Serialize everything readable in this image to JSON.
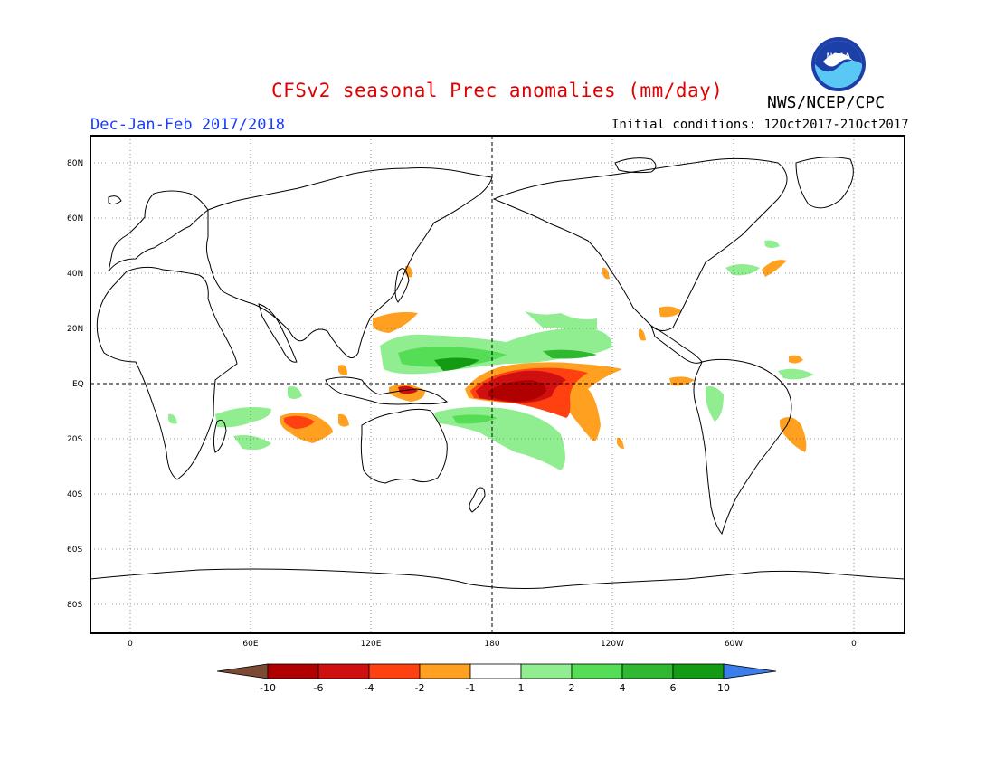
{
  "title": "CFSv2 seasonal Prec anomalies (mm/day)",
  "subtitle_left": "Dec-Jan-Feb 2017/2018",
  "subtitle_right": "Initial conditions: 12Oct2017-21Oct2017",
  "agency": "NWS/NCEP/CPC",
  "logo_text": "NOAA",
  "lat_labels": [
    "80N",
    "60N",
    "40N",
    "20N",
    "EQ",
    "20S",
    "40S",
    "60S",
    "80S"
  ],
  "lon_labels": [
    "0",
    "60E",
    "120E",
    "180",
    "120W",
    "60W",
    "0"
  ],
  "colorbar": {
    "labels": [
      "-10",
      "-6",
      "-4",
      "-2",
      "-1",
      "1",
      "2",
      "4",
      "6",
      "10"
    ],
    "colors": [
      "#7b4a35",
      "#b00000",
      "#d01010",
      "#ff4010",
      "#ffa020",
      "#ffffff",
      "#90ee90",
      "#55dd55",
      "#30b830",
      "#139c13",
      "#3b7dea"
    ]
  },
  "colors": {
    "title": "#e00000",
    "subtitle_left": "#1a3cff",
    "dry_strong": "#b00000",
    "dry_mid": "#ff4010",
    "dry_weak": "#ffa020",
    "wet_weak": "#90ee90",
    "wet_mid": "#55dd55",
    "wet_strong": "#30b830",
    "wet_max": "#139c13"
  }
}
